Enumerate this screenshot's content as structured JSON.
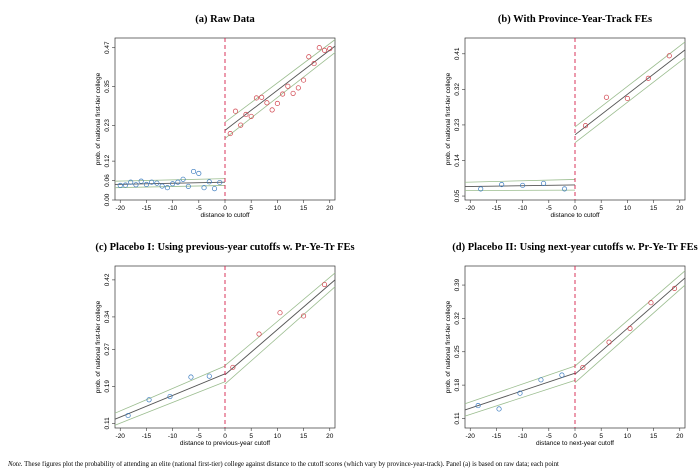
{
  "colors": {
    "left": "#3a7bbf",
    "right": "#d0404a",
    "fit": "#555555",
    "ci": "#9bbd8f",
    "cutoff": "#d6204a"
  },
  "note": {
    "label": "Note.",
    "text": "These figures plot the probability of attending an elite (national first-tier) college against distance to the cutoff scores (which vary by province-year-track). Panel (a) is based on raw data; each point"
  },
  "chart_data": [
    {
      "type": "scatter",
      "title": "(a) Raw Data",
      "xlabel": "distance to cutoff",
      "ylabel": "prob. of national first-tier college",
      "xlim": [
        -21,
        21
      ],
      "ylim": [
        0,
        0.5
      ],
      "xticks": [
        -20,
        -15,
        -10,
        -5,
        0,
        5,
        10,
        15,
        20
      ],
      "yticks": [
        0.0,
        0.06,
        0.12,
        0.23,
        0.35,
        0.47
      ],
      "ytick_labels": [
        "0.00",
        "0.06",
        "0.12",
        "0.23",
        "0.35",
        "0.47"
      ],
      "cutoff_x": 0,
      "left_points": [
        [
          -20,
          0.045
        ],
        [
          -19,
          0.046
        ],
        [
          -18,
          0.055
        ],
        [
          -17,
          0.047
        ],
        [
          -16,
          0.058
        ],
        [
          -15,
          0.048
        ],
        [
          -14,
          0.055
        ],
        [
          -13,
          0.052
        ],
        [
          -12,
          0.043
        ],
        [
          -11,
          0.038
        ],
        [
          -10,
          0.05
        ],
        [
          -9,
          0.055
        ],
        [
          -8,
          0.064
        ],
        [
          -7,
          0.042
        ],
        [
          -6,
          0.088
        ],
        [
          -5,
          0.082
        ],
        [
          -4,
          0.038
        ],
        [
          -3,
          0.056
        ],
        [
          -2,
          0.035
        ],
        [
          -1,
          0.054
        ]
      ],
      "right_points": [
        [
          1,
          0.205
        ],
        [
          2,
          0.274
        ],
        [
          3,
          0.231
        ],
        [
          4,
          0.264
        ],
        [
          5,
          0.258
        ],
        [
          6,
          0.315
        ],
        [
          7,
          0.317
        ],
        [
          8,
          0.3
        ],
        [
          9,
          0.278
        ],
        [
          10,
          0.298
        ],
        [
          11,
          0.327
        ],
        [
          12,
          0.351
        ],
        [
          13,
          0.329
        ],
        [
          14,
          0.346
        ],
        [
          15,
          0.37
        ],
        [
          16,
          0.442
        ],
        [
          17,
          0.421
        ],
        [
          18,
          0.47
        ],
        [
          19,
          0.462
        ],
        [
          20,
          0.467
        ]
      ],
      "left_fit": [
        [
          -21,
          0.048
        ],
        [
          0,
          0.055
        ]
      ],
      "right_fit": [
        [
          0,
          0.215
        ],
        [
          21,
          0.475
        ]
      ],
      "left_ci": [
        [
          [
            -21,
            0.038
          ],
          [
            0,
            0.045
          ]
        ],
        [
          [
            -21,
            0.058
          ],
          [
            0,
            0.066
          ]
        ]
      ],
      "right_ci": [
        [
          [
            0,
            0.19
          ],
          [
            21,
            0.455
          ]
        ],
        [
          [
            0,
            0.24
          ],
          [
            21,
            0.495
          ]
        ]
      ]
    },
    {
      "type": "scatter",
      "title": "(b) With Province-Year-Track FEs",
      "xlabel": "distance to cutoff",
      "ylabel": "prob. of national first-tier college",
      "xlim": [
        -21,
        21
      ],
      "ylim": [
        0.04,
        0.45
      ],
      "xticks": [
        -20,
        -15,
        -10,
        -5,
        0,
        5,
        10,
        15,
        20
      ],
      "yticks": [
        0.05,
        0.14,
        0.23,
        0.32,
        0.41
      ],
      "ytick_labels": [
        "0.05",
        "0.14",
        "0.23",
        "0.32",
        "0.41"
      ],
      "cutoff_x": 0,
      "left_points": [
        [
          -18,
          0.068
        ],
        [
          -14,
          0.079
        ],
        [
          -10,
          0.077
        ],
        [
          -6,
          0.082
        ],
        [
          -2,
          0.068
        ]
      ],
      "right_points": [
        [
          2,
          0.228
        ],
        [
          6,
          0.3
        ],
        [
          10,
          0.297
        ],
        [
          14,
          0.348
        ],
        [
          18,
          0.405
        ]
      ],
      "left_fit": [
        [
          -21,
          0.074
        ],
        [
          0,
          0.078
        ]
      ],
      "right_fit": [
        [
          0,
          0.205
        ],
        [
          21,
          0.42
        ]
      ],
      "left_ci": [
        [
          [
            -21,
            0.064
          ],
          [
            0,
            0.065
          ]
        ],
        [
          [
            -21,
            0.085
          ],
          [
            0,
            0.092
          ]
        ]
      ],
      "right_ci": [
        [
          [
            0,
            0.185
          ],
          [
            21,
            0.4
          ]
        ],
        [
          [
            0,
            0.225
          ],
          [
            21,
            0.44
          ]
        ]
      ]
    },
    {
      "type": "scatter",
      "title": "(c) Placebo I: Using previous-year cutoffs w. Pr-Ye-Tr FEs",
      "xlabel": "distance to previous-year cutoff",
      "ylabel": "prob. of national first-tier college",
      "xlim": [
        -21,
        21
      ],
      "ylim": [
        0.1,
        0.45
      ],
      "xticks": [
        -20,
        -15,
        -10,
        -5,
        0,
        5,
        10,
        15,
        20
      ],
      "yticks": [
        0.11,
        0.19,
        0.27,
        0.34,
        0.42
      ],
      "ytick_labels": [
        "0.11",
        "0.19",
        "0.27",
        "0.34",
        "0.42"
      ],
      "cutoff_x": 0,
      "left_points": [
        [
          -18.5,
          0.127
        ],
        [
          -14.5,
          0.161
        ],
        [
          -10.5,
          0.168
        ],
        [
          -6.5,
          0.21
        ],
        [
          -3,
          0.212
        ]
      ],
      "right_points": [
        [
          1.5,
          0.231
        ],
        [
          6.5,
          0.303
        ],
        [
          10.5,
          0.349
        ],
        [
          15,
          0.342
        ],
        [
          19,
          0.41
        ]
      ],
      "left_fit": [
        [
          -21,
          0.119
        ],
        [
          0,
          0.217
        ]
      ],
      "right_fit": [
        [
          0,
          0.215
        ],
        [
          21,
          0.42
        ]
      ],
      "left_ci": [
        [
          [
            -21,
            0.106
          ],
          [
            0,
            0.2
          ]
        ],
        [
          [
            -21,
            0.132
          ],
          [
            0,
            0.234
          ]
        ]
      ],
      "right_ci": [
        [
          [
            0,
            0.195
          ],
          [
            21,
            0.405
          ]
        ],
        [
          [
            0,
            0.235
          ],
          [
            21,
            0.435
          ]
        ]
      ]
    },
    {
      "type": "scatter",
      "title": "(d) Placebo II: Using next-year cutoffs w. Pr-Ye-Tr FEs",
      "xlabel": "distance to next-year cutoff",
      "ylabel": "prob. of national first-tier college",
      "xlim": [
        -21,
        21
      ],
      "ylim": [
        0.09,
        0.43
      ],
      "xticks": [
        -20,
        -15,
        -10,
        -5,
        0,
        5,
        10,
        15,
        20
      ],
      "yticks": [
        0.11,
        0.18,
        0.25,
        0.32,
        0.39
      ],
      "ytick_labels": [
        "0.11",
        "0.18",
        "0.25",
        "0.32",
        "0.39"
      ],
      "cutoff_x": 0,
      "left_points": [
        [
          -18.5,
          0.137
        ],
        [
          -14.5,
          0.13
        ],
        [
          -10.5,
          0.163
        ],
        [
          -6.5,
          0.191
        ],
        [
          -2.5,
          0.201
        ]
      ],
      "right_points": [
        [
          1.5,
          0.217
        ],
        [
          6.5,
          0.27
        ],
        [
          10.5,
          0.299
        ],
        [
          14.5,
          0.353
        ],
        [
          19,
          0.383
        ]
      ],
      "left_fit": [
        [
          -21,
          0.128
        ],
        [
          0,
          0.205
        ]
      ],
      "right_fit": [
        [
          0,
          0.203
        ],
        [
          21,
          0.405
        ]
      ],
      "left_ci": [
        [
          [
            -21,
            0.115
          ],
          [
            0,
            0.19
          ]
        ],
        [
          [
            -21,
            0.141
          ],
          [
            0,
            0.22
          ]
        ]
      ],
      "right_ci": [
        [
          [
            0,
            0.185
          ],
          [
            21,
            0.39
          ]
        ],
        [
          [
            0,
            0.22
          ],
          [
            21,
            0.42
          ]
        ]
      ]
    }
  ]
}
